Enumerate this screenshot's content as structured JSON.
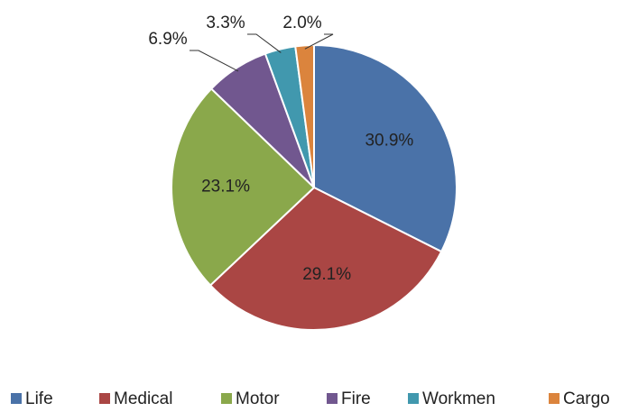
{
  "chart_data": {
    "type": "pie",
    "categories": [
      "Life",
      "Medical",
      "Motor",
      "Fire",
      "Workmen",
      "Cargo"
    ],
    "values": [
      30.9,
      29.1,
      23.1,
      6.9,
      3.3,
      2.0
    ],
    "value_labels": [
      "30.9%",
      "29.1%",
      "23.1%",
      "6.9%",
      "3.3%",
      "2.0%"
    ],
    "colors": [
      "#4a72a8",
      "#aa4644",
      "#8aa84b",
      "#71578f",
      "#4198ae",
      "#db843d"
    ],
    "legend": "bottom"
  }
}
